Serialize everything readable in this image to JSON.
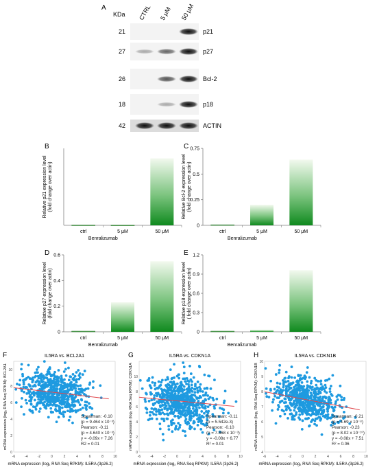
{
  "panel_a": {
    "letter": "A",
    "kda_label": "KDa",
    "lanes": [
      "CTRL",
      "5 μM",
      "50 μM"
    ],
    "blots": [
      {
        "kda": "21",
        "protein": "p21",
        "intensity": [
          0,
          0,
          1.0
        ]
      },
      {
        "kda": "27",
        "protein": "p27",
        "intensity": [
          0.1,
          0.5,
          1.0
        ]
      },
      {
        "kda": "26",
        "protein": "Bcl-2",
        "intensity": [
          0,
          0.6,
          1.0
        ]
      },
      {
        "kda": "18",
        "protein": "p18",
        "intensity": [
          0,
          0.1,
          1.0
        ]
      },
      {
        "kda": "42",
        "protein": "ACTIN",
        "intensity": [
          1.0,
          1.0,
          1.0
        ]
      }
    ]
  },
  "chart_data": [
    {
      "panel": "B",
      "type": "bar",
      "categories": [
        "ctrl",
        "5 μM",
        "50 μM"
      ],
      "values": [
        0.003,
        0.002,
        0.87
      ],
      "ylabel_lines": [
        "Relative p21 expression level",
        "(fold change over actin)"
      ],
      "xlabel": "Benralizumab",
      "ylim": [
        0,
        1
      ],
      "yticks": []
    },
    {
      "panel": "C",
      "type": "bar",
      "categories": [
        "ctrl",
        "5 μM",
        "50 μM"
      ],
      "values": [
        0.005,
        0.2,
        0.64
      ],
      "ylabel_lines": [
        "Relative Bcl-2 expression level",
        "(fold change over actin)"
      ],
      "xlabel": "Benralizumab",
      "ylim": [
        0,
        0.75
      ],
      "yticks": [
        "0",
        "0.25",
        "0.5",
        "0.75"
      ]
    },
    {
      "panel": "D",
      "type": "bar",
      "categories": [
        "ctrl",
        "5 μM",
        "50 μM"
      ],
      "values": [
        0.005,
        0.23,
        0.55
      ],
      "ylabel_lines": [
        "Relative p27 expression level",
        "(fold change over actin)"
      ],
      "xlabel": "Benralizumab",
      "ylim": [
        0,
        0.6
      ],
      "yticks": [
        "0",
        "0.2",
        "0.4",
        "0.6"
      ]
    },
    {
      "panel": "E",
      "type": "bar",
      "categories": [
        "ctrl",
        "5 μM",
        "50 μM"
      ],
      "values": [
        0.01,
        0.03,
        0.96
      ],
      "ylabel_lines": [
        "Relative p18 expression level",
        "( fold change over actin)"
      ],
      "xlabel": "",
      "ylim": [
        0,
        1.2
      ],
      "yticks": [
        "0",
        "0.3",
        "0.6",
        "0.9",
        "1.2"
      ]
    },
    {
      "panel": "F",
      "type": "scatter",
      "title": "IL5RA vs. BCL2A1",
      "ylabel": "mRNA expression (log₂ RNA Seq RPKM): BCL2A1",
      "xlabel": "mRNA expression (log₂ RNA Seq RPKM): IL5RA (3p26.2)",
      "xlim": [
        -6,
        10
      ],
      "ylim": [
        0,
        11
      ],
      "xticks": [
        "-6",
        "-4",
        "-2",
        "0",
        "2",
        "4",
        "6",
        "8",
        "10"
      ],
      "yticks": [
        "0",
        "2",
        "4",
        "6",
        "8",
        "10"
      ],
      "cloud": {
        "x_center": 0.5,
        "x_spread": 2.6,
        "y_center": 7.2,
        "y_spread": 1.4,
        "n": 650
      },
      "fit": {
        "slope": -0.09,
        "intercept": 7.26
      },
      "stats": [
        "Spearman: -0.10",
        "(p = 9.464 x 10⁻³)",
        "Pearson: -0.11",
        "(p = 4.640 x 10⁻³)",
        "y = -0.09x + 7.26",
        "R2 = 0.01"
      ]
    },
    {
      "panel": "G",
      "type": "scatter",
      "title": "IL5RA vs. CDKN1A",
      "ylabel": "mRNA expression (log₂ RNA Seq RPKM): CDKN1A",
      "xlabel": "mRNA expression (log₂ RNA Seq RPKM): IL5RA (3p26.2)",
      "xlim": [
        -6,
        10
      ],
      "ylim": [
        0,
        12
      ],
      "xticks": [
        "-6",
        "-4",
        "-2",
        "0",
        "2",
        "4",
        "6",
        "8",
        "10"
      ],
      "yticks": [
        "0",
        "2",
        "4",
        "6",
        "8",
        "10"
      ],
      "cloud": {
        "x_center": 0.5,
        "x_spread": 2.6,
        "y_center": 6.7,
        "y_spread": 1.6,
        "n": 650
      },
      "fit": {
        "slope": -0.08,
        "intercept": 6.77
      },
      "stats": [
        "Spearman: -0.11",
        "(p = 5.542e-3)",
        "Pearson: -0.10",
        "(p = 7.868 x 10⁻³)",
        "y = -0.08x + 6.77",
        "R² = 0.01"
      ]
    },
    {
      "panel": "H",
      "type": "scatter",
      "title": "IL5RA vs. CDKN1B",
      "ylabel": "mRNA expression (log₂ RNA Seq RPKM): CDKN1B",
      "xlabel": "mRNA expression (log₂ RNA Seq RPKM): IL5RA (3p26.2)",
      "xlim": [
        -6,
        10
      ],
      "ylim": [
        4,
        10
      ],
      "xticks": [
        "-6",
        "-4",
        "-2",
        "0",
        "2",
        "4",
        "6",
        "8",
        "10"
      ],
      "yticks": [
        "4",
        "5",
        "6",
        "7",
        "8",
        "9",
        "10"
      ],
      "cloud": {
        "x_center": 0.5,
        "x_spread": 2.6,
        "y_center": 7.5,
        "y_spread": 0.75,
        "n": 650
      },
      "fit": {
        "slope": -0.08,
        "intercept": 7.51
      },
      "stats": [
        "Spearman: -0.21",
        "(p = 4.69 x 10⁻⁸)",
        "Pearson: -0.23",
        "(p = 8.02 x 10⁻¹⁰)",
        "y = -0.08x + 7.51",
        "R² = 0.06"
      ]
    }
  ],
  "colors": {
    "bar_top": "#f2f9ee",
    "bar_bottom": "#0f8a1e",
    "dot": "#1e9ae0",
    "fit": "#e0474c",
    "axis": "#7f7f7f"
  }
}
